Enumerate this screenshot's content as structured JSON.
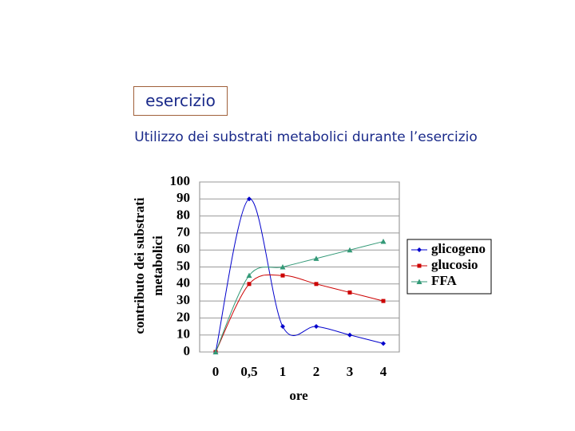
{
  "header": {
    "box": "esercizio",
    "subtitle": "Utilizzo dei substrati metabolici durante l’esercizio"
  },
  "chart_data": {
    "type": "line",
    "smooth": true,
    "categories": [
      "0",
      "0,5",
      "1",
      "2",
      "3",
      "4"
    ],
    "xlabel": "ore",
    "ylabel": [
      "contributo dei substrati",
      "metabolici"
    ],
    "ylim": [
      0,
      100
    ],
    "yticks": [
      0,
      10,
      20,
      30,
      40,
      50,
      60,
      70,
      80,
      90,
      100
    ],
    "grid": true,
    "legend": "right",
    "series": [
      {
        "name": "glicogeno",
        "color": "#0000cc",
        "marker": "diamond",
        "values": [
          0,
          90,
          15,
          15,
          10,
          5
        ]
      },
      {
        "name": "glucosio",
        "color": "#cc0000",
        "marker": "square",
        "values": [
          0,
          40,
          45,
          40,
          35,
          30
        ]
      },
      {
        "name": "FFA",
        "color": "#339977",
        "marker": "triangle",
        "values": [
          0,
          45,
          50,
          55,
          60,
          65
        ]
      }
    ]
  }
}
